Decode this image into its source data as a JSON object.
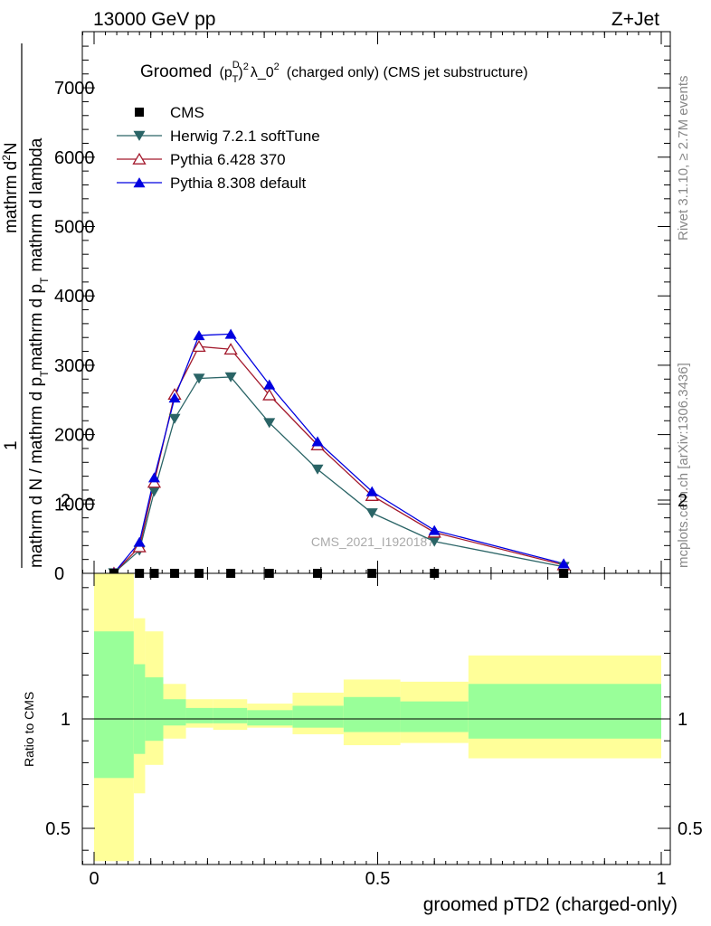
{
  "header": {
    "left": "13000 GeV pp",
    "right": "Z+Jet"
  },
  "side": {
    "rivet": "Rivet 3.1.10, ≥ 2.7M events",
    "mcplots": "mcplots.cern.ch [arXiv:1306.3436]"
  },
  "chart_data": {
    "type": "line",
    "title": {
      "prefix": "Groomed",
      "formula": "(p",
      "sup_D": "D",
      "sub_T": "T",
      "close": ")",
      "sup_2": "2",
      "lambda": "λ_0",
      "sup_2b": "2",
      "suffix": "(charged only) (CMS jet substructure)"
    },
    "ylabel_main": {
      "num_one": "1",
      "den_part1": "mathrm d N / mathrm d p",
      "den_sub1": "T",
      "num2": "mathrm d",
      "sup_N": "2",
      "num2b": "N",
      "den2": "mathrm d p",
      "den2_sub": "T",
      "den2b": "mathrm d lambda"
    },
    "watermark": "CMS_2021_I1920187",
    "xlabel": "groomed pTD2 (charged-only)",
    "ylabel_ratio": "Ratio to CMS",
    "xlim": [
      -0.04,
      1.02
    ],
    "ylim_main": [
      0,
      7700
    ],
    "ylim_ratio": [
      0.35,
      2.25
    ],
    "x_ticks": [
      "0",
      "0.5",
      "1"
    ],
    "y_ticks_main": [
      "0",
      "1000",
      "2000",
      "3000",
      "4000",
      "5000",
      "6000",
      "7000"
    ],
    "y_ticks_ratio": [
      "0.5",
      "1",
      "2"
    ],
    "legend": [
      {
        "name": "CMS",
        "color": "#000000",
        "marker": "square"
      },
      {
        "name": "Herwig 7.2.1 softTune",
        "color": "#2a6466",
        "marker": "triangle-down"
      },
      {
        "name": "Pythia 6.428 370",
        "color": "#a3192c",
        "marker": "triangle-open"
      },
      {
        "name": "Pythia 8.308 default",
        "color": "#0000e0",
        "marker": "triangle-up"
      }
    ],
    "cms": {
      "x": [
        0.035,
        0.08,
        0.106,
        0.142,
        0.185,
        0.241,
        0.309,
        0.394,
        0.49,
        0.6,
        0.828
      ],
      "y": [
        0,
        0,
        0,
        0,
        0,
        0,
        0,
        0,
        0,
        0,
        0
      ]
    },
    "series": [
      {
        "name": "Herwig 7.2.1 softTune",
        "color": "#2a6466",
        "x": [
          0.035,
          0.08,
          0.106,
          0.142,
          0.185,
          0.241,
          0.309,
          0.394,
          0.49,
          0.6,
          0.828
        ],
        "y": [
          5,
          330,
          1180,
          2230,
          2810,
          2830,
          2170,
          1500,
          870,
          460,
          95
        ]
      },
      {
        "name": "Pythia 6.428 370",
        "color": "#a3192c",
        "x": [
          0.035,
          0.08,
          0.106,
          0.142,
          0.185,
          0.241,
          0.309,
          0.394,
          0.49,
          0.6,
          0.828
        ],
        "y": [
          5,
          380,
          1310,
          2580,
          3270,
          3230,
          2570,
          1850,
          1120,
          590,
          120
        ]
      },
      {
        "name": "Pythia 8.308 default",
        "color": "#0000e0",
        "x": [
          0.035,
          0.08,
          0.106,
          0.142,
          0.185,
          0.241,
          0.309,
          0.394,
          0.49,
          0.6,
          0.828
        ],
        "y": [
          5,
          450,
          1380,
          2530,
          3430,
          3450,
          2720,
          1900,
          1180,
          620,
          140
        ]
      }
    ],
    "ratio_bands": {
      "edges": [
        0.0,
        0.07,
        0.09,
        0.122,
        0.162,
        0.21,
        0.27,
        0.35,
        0.44,
        0.54,
        0.66,
        1.0
      ],
      "inner_lo": [
        0.73,
        0.84,
        0.9,
        0.97,
        0.98,
        0.98,
        0.97,
        0.96,
        0.94,
        0.94,
        0.91
      ],
      "inner_hi": [
        1.4,
        1.25,
        1.19,
        1.09,
        1.05,
        1.05,
        1.04,
        1.06,
        1.1,
        1.08,
        1.16
      ],
      "outer_lo": [
        0.35,
        0.66,
        0.79,
        0.91,
        0.96,
        0.95,
        0.96,
        0.93,
        0.88,
        0.89,
        0.82
      ],
      "outer_hi": [
        1.71,
        1.46,
        1.4,
        1.16,
        1.09,
        1.09,
        1.07,
        1.12,
        1.18,
        1.17,
        1.29
      ],
      "inner_color": "#99ff99",
      "outer_color": "#ffff99"
    }
  }
}
